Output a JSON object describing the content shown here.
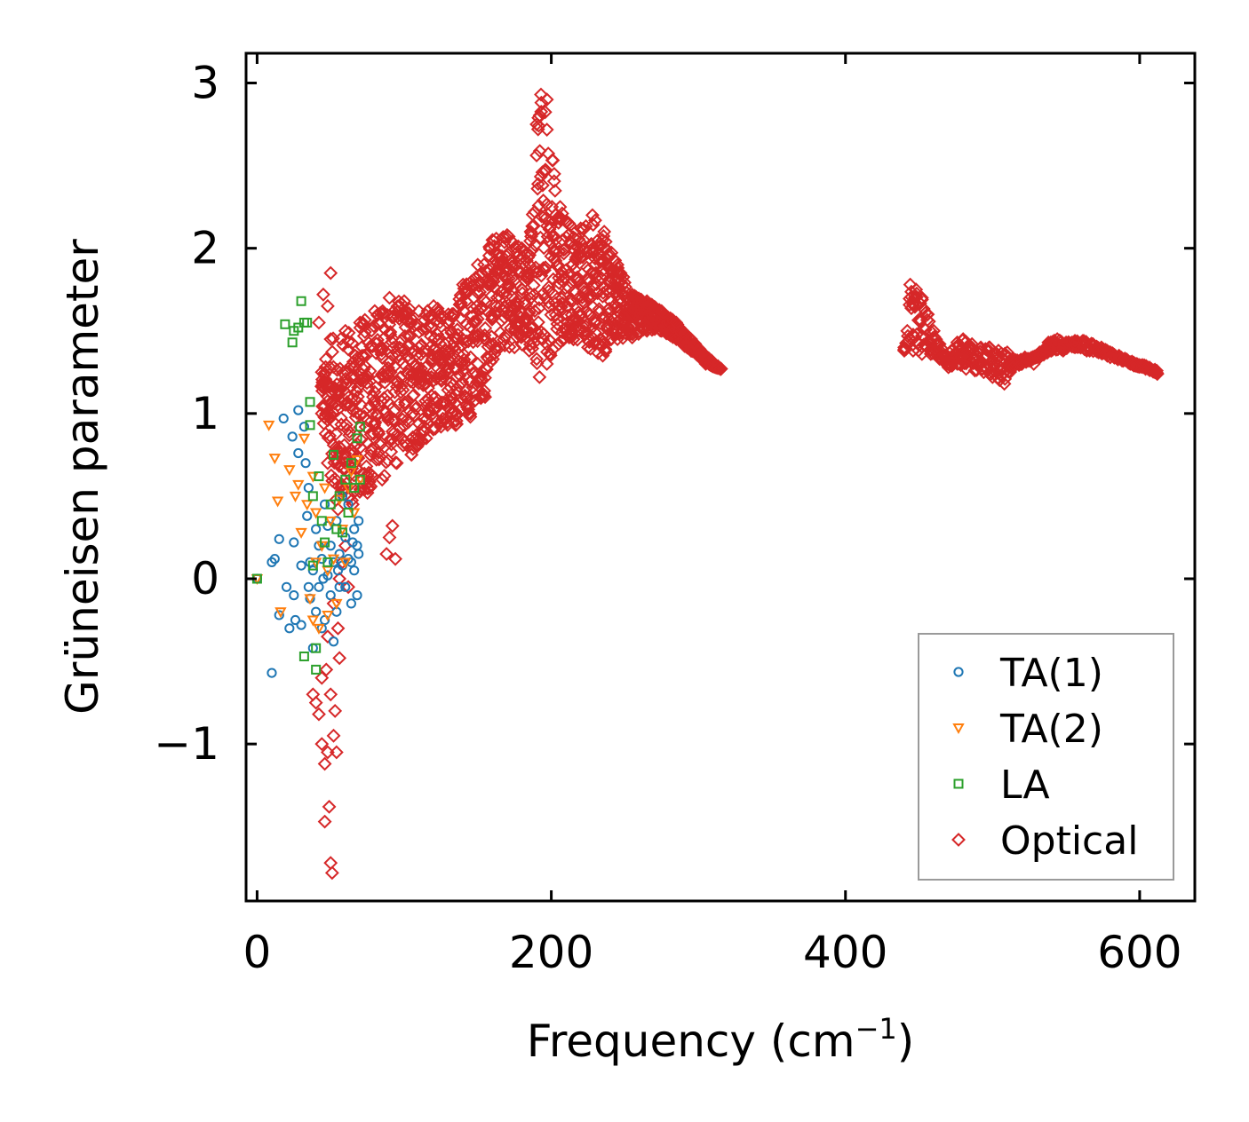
{
  "chart_data": {
    "type": "scatter",
    "xlabel": "Frequency (cm",
    "xlabel_sup": "−1",
    "xlabel_end": ")",
    "ylabel": "Grüneisen parameter",
    "xlim": [
      -7.5,
      637.5
    ],
    "ylim": [
      -1.95,
      3.18
    ],
    "x_ticks": [
      0,
      200,
      400,
      600
    ],
    "x_tick_labels": [
      "0",
      "200",
      "400",
      "600"
    ],
    "y_ticks": [
      -1,
      0,
      1,
      2,
      3
    ],
    "y_tick_labels": [
      "−1",
      "0",
      "1",
      "2",
      "3"
    ],
    "legend_position": "lower-right",
    "series": [
      {
        "name": "TA(1)",
        "marker": "circle",
        "color": "#1f77b4",
        "points": [
          [
            0,
            0
          ],
          [
            10,
            0.1
          ],
          [
            12,
            0.12
          ],
          [
            15,
            0.24
          ],
          [
            15,
            -0.22
          ],
          [
            18,
            0.97
          ],
          [
            20,
            -0.05
          ],
          [
            22,
            -0.3
          ],
          [
            24,
            0.86
          ],
          [
            25,
            0.22
          ],
          [
            26,
            -0.25
          ],
          [
            28,
            1.02
          ],
          [
            28,
            0.76
          ],
          [
            30,
            0.08
          ],
          [
            30,
            -0.28
          ],
          [
            32,
            0.92
          ],
          [
            33,
            0.7
          ],
          [
            34,
            0.38
          ],
          [
            35,
            0.55
          ],
          [
            36,
            0.1
          ],
          [
            36,
            -0.12
          ],
          [
            38,
            0.05
          ],
          [
            38,
            -0.42
          ],
          [
            40,
            0.3
          ],
          [
            40,
            -0.2
          ],
          [
            42,
            0.2
          ],
          [
            42,
            -0.05
          ],
          [
            44,
            0.12
          ],
          [
            44,
            -0.3
          ],
          [
            46,
            0.45
          ],
          [
            46,
            -0.25
          ],
          [
            48,
            0.32
          ],
          [
            48,
            0.02
          ],
          [
            50,
            0.2
          ],
          [
            50,
            -0.1
          ],
          [
            52,
            0.1
          ],
          [
            52,
            -0.38
          ],
          [
            54,
            0.35
          ],
          [
            54,
            -0.2
          ],
          [
            56,
            0.15
          ],
          [
            56,
            -0.05
          ],
          [
            58,
            0.5
          ],
          [
            58,
            0.08
          ],
          [
            60,
            0.25
          ],
          [
            60,
            -0.05
          ],
          [
            62,
            0.45
          ],
          [
            62,
            0.12
          ],
          [
            64,
            0.1
          ],
          [
            64,
            -0.15
          ],
          [
            66,
            0.3
          ],
          [
            66,
            0.05
          ],
          [
            68,
            0.2
          ],
          [
            68,
            -0.1
          ],
          [
            69,
            0.35
          ],
          [
            69,
            0.15
          ],
          [
            10,
            -0.57
          ],
          [
            25,
            -0.1
          ],
          [
            35,
            -0.05
          ],
          [
            45,
            0.0
          ],
          [
            55,
            0.05
          ],
          [
            65,
            0.22
          ]
        ]
      },
      {
        "name": "TA(2)",
        "marker": "triangle-down",
        "color": "#ff7f0e",
        "points": [
          [
            0,
            0
          ],
          [
            8,
            0.93
          ],
          [
            12,
            0.73
          ],
          [
            14,
            0.47
          ],
          [
            16,
            -0.2
          ],
          [
            22,
            0.66
          ],
          [
            26,
            0.5
          ],
          [
            28,
            0.57
          ],
          [
            30,
            0.28
          ],
          [
            32,
            0.85
          ],
          [
            34,
            0.45
          ],
          [
            36,
            -0.12
          ],
          [
            38,
            0.62
          ],
          [
            38,
            -0.25
          ],
          [
            40,
            0.4
          ],
          [
            40,
            0.1
          ],
          [
            42,
            -0.3
          ],
          [
            44,
            0.2
          ],
          [
            46,
            0.55
          ],
          [
            48,
            0.05
          ],
          [
            48,
            -0.22
          ],
          [
            50,
            0.35
          ],
          [
            52,
            0.12
          ],
          [
            54,
            -0.15
          ],
          [
            56,
            0.48
          ],
          [
            58,
            0.3
          ],
          [
            60,
            0.1
          ],
          [
            62,
            0.55
          ],
          [
            64,
            0.65
          ],
          [
            66,
            0.4
          ],
          [
            68,
            0.72
          ],
          [
            70,
            0.6
          ]
        ]
      },
      {
        "name": "LA",
        "marker": "square",
        "color": "#2ca02c",
        "points": [
          [
            0,
            0
          ],
          [
            19,
            1.54
          ],
          [
            24,
            1.43
          ],
          [
            25,
            1.5
          ],
          [
            28,
            1.52
          ],
          [
            30,
            1.68
          ],
          [
            32,
            1.55
          ],
          [
            34,
            1.55
          ],
          [
            36,
            1.07
          ],
          [
            36,
            0.93
          ],
          [
            38,
            0.5
          ],
          [
            38,
            0.08
          ],
          [
            40,
            -0.42
          ],
          [
            40,
            -0.55
          ],
          [
            42,
            0.62
          ],
          [
            44,
            0.35
          ],
          [
            46,
            0.22
          ],
          [
            48,
            0.1
          ],
          [
            50,
            0.45
          ],
          [
            52,
            0.75
          ],
          [
            54,
            0.3
          ],
          [
            56,
            0.5
          ],
          [
            58,
            0.28
          ],
          [
            60,
            0.6
          ],
          [
            62,
            0.4
          ],
          [
            64,
            0.7
          ],
          [
            66,
            0.55
          ],
          [
            68,
            0.85
          ],
          [
            70,
            0.92
          ],
          [
            70,
            0.6
          ],
          [
            32,
            -0.47
          ]
        ]
      }
    ],
    "optical_series": {
      "name": "Optical",
      "marker": "diamond",
      "color": "#d62728",
      "low_scatter": [
        [
          38,
          -0.7
        ],
        [
          40,
          -0.75
        ],
        [
          42,
          -0.82
        ],
        [
          44,
          -1.0
        ],
        [
          46,
          -1.12
        ],
        [
          48,
          -1.05
        ],
        [
          46,
          -1.47
        ],
        [
          49,
          -1.38
        ],
        [
          50,
          -1.72
        ],
        [
          51,
          -1.78
        ],
        [
          52,
          -0.95
        ],
        [
          54,
          -1.05
        ],
        [
          44,
          -0.6
        ],
        [
          47,
          -0.55
        ],
        [
          50,
          -0.7
        ],
        [
          53,
          -0.8
        ],
        [
          56,
          -0.48
        ],
        [
          55,
          -0.3
        ],
        [
          52,
          -0.15
        ],
        [
          48,
          -0.35
        ],
        [
          50,
          1.85
        ],
        [
          45,
          1.72
        ],
        [
          48,
          1.65
        ],
        [
          42,
          1.55
        ],
        [
          58,
          0.1
        ],
        [
          60,
          0.2
        ],
        [
          62,
          -0.05
        ],
        [
          56,
          0.0
        ],
        [
          88,
          0.15
        ],
        [
          90,
          0.25
        ],
        [
          92,
          0.32
        ],
        [
          94,
          0.12
        ]
      ],
      "envelope_upper": [
        [
          44,
          1.25
        ],
        [
          50,
          1.45
        ],
        [
          60,
          1.5
        ],
        [
          70,
          1.55
        ],
        [
          80,
          1.62
        ],
        [
          90,
          1.7
        ],
        [
          100,
          1.68
        ],
        [
          110,
          1.62
        ],
        [
          120,
          1.65
        ],
        [
          130,
          1.6
        ],
        [
          140,
          1.78
        ],
        [
          150,
          1.9
        ],
        [
          160,
          2.05
        ],
        [
          170,
          2.08
        ],
        [
          180,
          2.0
        ],
        [
          186,
          2.1
        ],
        [
          190,
          2.75
        ],
        [
          193,
          2.93
        ],
        [
          197,
          2.9
        ],
        [
          202,
          2.45
        ],
        [
          206,
          2.25
        ],
        [
          212,
          2.15
        ],
        [
          220,
          2.12
        ],
        [
          228,
          2.2
        ],
        [
          236,
          2.1
        ],
        [
          245,
          1.9
        ],
        [
          255,
          1.72
        ],
        [
          265,
          1.68
        ],
        [
          275,
          1.62
        ],
        [
          285,
          1.55
        ],
        [
          295,
          1.45
        ],
        [
          305,
          1.35
        ],
        [
          315,
          1.27
        ]
      ],
      "envelope_lower": [
        [
          315,
          1.27
        ],
        [
          305,
          1.3
        ],
        [
          295,
          1.38
        ],
        [
          285,
          1.45
        ],
        [
          275,
          1.5
        ],
        [
          265,
          1.5
        ],
        [
          255,
          1.46
        ],
        [
          245,
          1.45
        ],
        [
          235,
          1.35
        ],
        [
          225,
          1.4
        ],
        [
          215,
          1.45
        ],
        [
          205,
          1.42
        ],
        [
          197,
          1.3
        ],
        [
          192,
          1.22
        ],
        [
          185,
          1.38
        ],
        [
          175,
          1.4
        ],
        [
          165,
          1.4
        ],
        [
          155,
          1.1
        ],
        [
          145,
          0.98
        ],
        [
          135,
          0.93
        ],
        [
          125,
          0.92
        ],
        [
          115,
          0.85
        ],
        [
          105,
          0.75
        ],
        [
          95,
          0.7
        ],
        [
          85,
          0.6
        ],
        [
          75,
          0.52
        ],
        [
          65,
          0.45
        ],
        [
          55,
          0.42
        ],
        [
          48,
          0.7
        ],
        [
          44,
          1.0
        ]
      ],
      "high_branch": [
        [
          440,
          1.4
        ],
        [
          442,
          1.5
        ],
        [
          444,
          1.78
        ],
        [
          448,
          1.75
        ],
        [
          452,
          1.7
        ],
        [
          456,
          1.6
        ],
        [
          460,
          1.5
        ],
        [
          464,
          1.42
        ],
        [
          468,
          1.35
        ],
        [
          472,
          1.38
        ],
        [
          476,
          1.43
        ],
        [
          480,
          1.45
        ],
        [
          486,
          1.42
        ],
        [
          492,
          1.4
        ],
        [
          498,
          1.4
        ],
        [
          504,
          1.38
        ],
        [
          510,
          1.37
        ],
        [
          516,
          1.32
        ],
        [
          522,
          1.34
        ],
        [
          528,
          1.3
        ],
        [
          532,
          1.37
        ],
        [
          538,
          1.43
        ],
        [
          544,
          1.45
        ],
        [
          550,
          1.43
        ],
        [
          556,
          1.44
        ],
        [
          562,
          1.44
        ],
        [
          568,
          1.42
        ],
        [
          574,
          1.4
        ],
        [
          580,
          1.37
        ],
        [
          586,
          1.35
        ],
        [
          592,
          1.32
        ],
        [
          598,
          1.3
        ],
        [
          604,
          1.28
        ],
        [
          612,
          1.24
        ]
      ],
      "high_branch_lower": [
        [
          440,
          1.38
        ],
        [
          446,
          1.38
        ],
        [
          452,
          1.36
        ],
        [
          458,
          1.36
        ],
        [
          464,
          1.33
        ],
        [
          470,
          1.28
        ],
        [
          476,
          1.3
        ],
        [
          482,
          1.27
        ],
        [
          488,
          1.26
        ],
        [
          494,
          1.25
        ],
        [
          500,
          1.22
        ],
        [
          508,
          1.18
        ],
        [
          514,
          1.28
        ],
        [
          520,
          1.3
        ],
        [
          526,
          1.32
        ],
        [
          532,
          1.34
        ],
        [
          540,
          1.38
        ],
        [
          548,
          1.38
        ],
        [
          556,
          1.4
        ],
        [
          564,
          1.38
        ],
        [
          572,
          1.37
        ],
        [
          580,
          1.34
        ],
        [
          588,
          1.32
        ],
        [
          596,
          1.29
        ],
        [
          604,
          1.27
        ],
        [
          612,
          1.24
        ]
      ]
    }
  }
}
